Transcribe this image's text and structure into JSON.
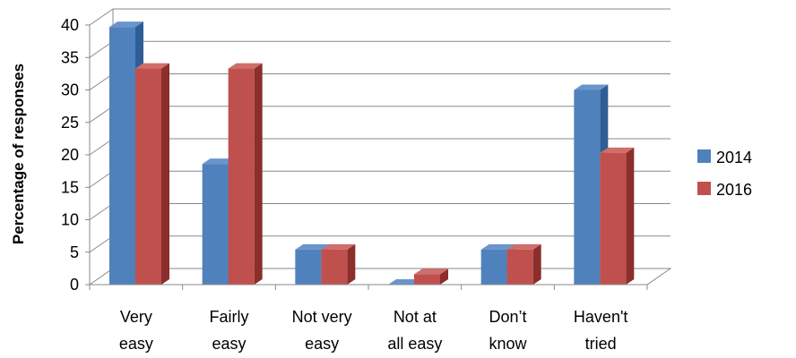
{
  "chart_data": {
    "type": "bar",
    "title": "",
    "xlabel": "",
    "ylabel": "Percentage of responses",
    "categories": [
      [
        "Very",
        "easy"
      ],
      [
        "Fairly",
        "easy"
      ],
      [
        "Not very",
        "easy"
      ],
      [
        "Not at",
        "all easy"
      ],
      [
        "Don’t",
        "know"
      ],
      [
        "Haven't",
        "tried"
      ]
    ],
    "series": [
      {
        "name": "2014",
        "values": [
          39.7,
          18.6,
          5.4,
          0,
          5.4,
          30.0
        ],
        "color": "#4F81BD",
        "side": "#2F5D96",
        "top": "#6A95CC"
      },
      {
        "name": "2016",
        "values": [
          33.3,
          33.3,
          5.4,
          1.6,
          5.4,
          20.3
        ],
        "color": "#C0504D",
        "side": "#8B2E2C",
        "top": "#CF6E6B"
      }
    ],
    "ylim": [
      0,
      40
    ],
    "yticks": [
      0,
      5,
      10,
      15,
      20,
      25,
      30,
      35,
      40
    ],
    "grid": true,
    "legend_position": "right",
    "style": "3d-clustered-column"
  }
}
